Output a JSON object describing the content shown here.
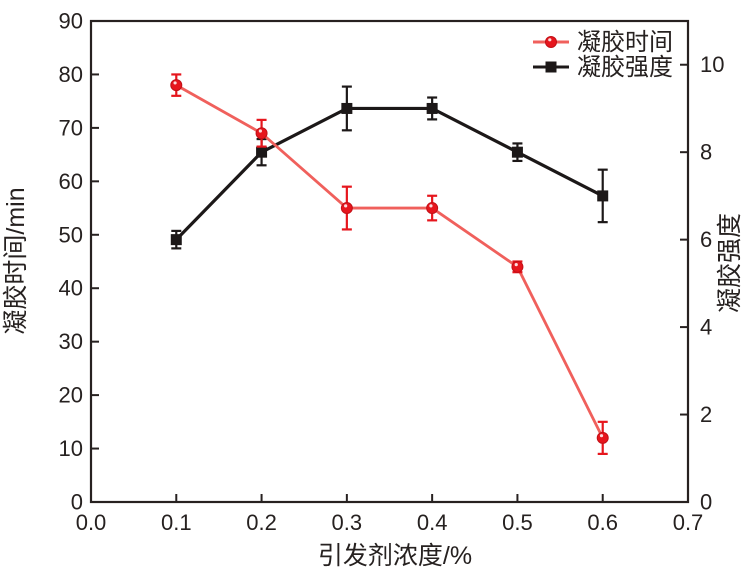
{
  "chart_data": {
    "type": "line",
    "title": "",
    "xlabel": "引发剂浓度/%",
    "ylabel_left": "凝胶时间/min",
    "ylabel_right": "凝胶强度",
    "xlim": [
      0.0,
      0.7
    ],
    "ylim_left": [
      0,
      90
    ],
    "ylim_right": [
      0,
      11
    ],
    "x_ticks": [
      "0.0",
      "0.1",
      "0.2",
      "0.3",
      "0.4",
      "0.5",
      "0.6",
      "0.7"
    ],
    "y_left_ticks": [
      "0",
      "10",
      "20",
      "30",
      "40",
      "50",
      "60",
      "70",
      "80",
      "90"
    ],
    "y_right_ticks": [
      "0",
      "2",
      "4",
      "6",
      "8",
      "10"
    ],
    "grid": false,
    "legend_position": "top-right-inside",
    "x": [
      0.1,
      0.2,
      0.3,
      0.4,
      0.5,
      0.6
    ],
    "series": [
      {
        "name": "凝胶时间",
        "axis": "left",
        "marker": "circle",
        "line_color": "#f0605c",
        "marker_color": "#e6161d",
        "marker_edge": "#c20f16",
        "values": [
          78,
          69,
          55,
          55,
          44,
          12
        ],
        "errors": [
          2,
          2.5,
          4,
          2.3,
          1,
          3
        ]
      },
      {
        "name": "凝胶强度",
        "axis": "right",
        "marker": "square",
        "line_color": "#1c1818",
        "marker_color": "#1c1818",
        "marker_edge": "#1c1818",
        "values": [
          6,
          8,
          9,
          9,
          8,
          7
        ],
        "errors": [
          0.2,
          0.3,
          0.5,
          0.25,
          0.2,
          0.6
        ]
      }
    ],
    "colors": {
      "frame": "#272120",
      "tick_text": "#262120",
      "background": "#ffffff"
    }
  }
}
